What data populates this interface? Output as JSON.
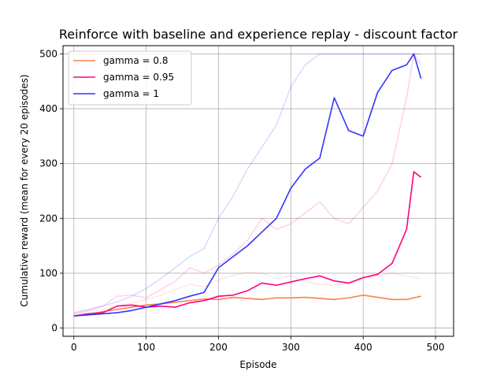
{
  "chart_data": {
    "type": "line",
    "title": "Reinforce with baseline and experience replay - discount factor",
    "xlabel": "Episode",
    "ylabel": "Cumulative reward (mean for every 20 episodes)",
    "xlim": [
      -15,
      525
    ],
    "ylim": [
      -15,
      515
    ],
    "xticks": [
      0,
      100,
      200,
      300,
      400,
      500
    ],
    "yticks": [
      0,
      100,
      200,
      300,
      400,
      500
    ],
    "grid": true,
    "legend": "upper left",
    "series": [
      {
        "name": "gamma = 0.8",
        "color": "#ff7f50",
        "x": [
          0,
          20,
          40,
          60,
          80,
          100,
          120,
          140,
          160,
          180,
          200,
          220,
          240,
          260,
          280,
          300,
          320,
          340,
          360,
          380,
          400,
          420,
          440,
          460,
          480
        ],
        "y": [
          22,
          25,
          30,
          34,
          38,
          42,
          44,
          47,
          50,
          53,
          52,
          56,
          54,
          52,
          55,
          55,
          56,
          54,
          52,
          55,
          60,
          56,
          52,
          52,
          58
        ],
        "raw_y": [
          24,
          30,
          34,
          40,
          46,
          52,
          60,
          70,
          80,
          75,
          88,
          96,
          102,
          100,
          90,
          95,
          85,
          80,
          78,
          82,
          90,
          95,
          100,
          95,
          90
        ]
      },
      {
        "name": "gamma = 0.95",
        "color": "#ff0080",
        "x": [
          0,
          20,
          40,
          60,
          80,
          100,
          120,
          140,
          160,
          180,
          200,
          220,
          240,
          260,
          280,
          300,
          320,
          340,
          360,
          380,
          400,
          420,
          440,
          460,
          470,
          480
        ],
        "y": [
          22,
          26,
          28,
          40,
          42,
          38,
          40,
          38,
          46,
          50,
          58,
          60,
          68,
          82,
          78,
          84,
          90,
          95,
          86,
          82,
          92,
          98,
          118,
          180,
          285,
          275
        ],
        "raw_y": [
          26,
          32,
          40,
          58,
          60,
          55,
          70,
          85,
          110,
          100,
          115,
          135,
          160,
          200,
          180,
          190,
          210,
          230,
          200,
          190,
          220,
          250,
          300,
          420,
          500,
          480
        ]
      },
      {
        "name": "gamma = 1",
        "color": "#3333ff",
        "x": [
          0,
          20,
          40,
          60,
          80,
          100,
          120,
          140,
          160,
          180,
          200,
          220,
          240,
          260,
          280,
          300,
          320,
          340,
          360,
          380,
          400,
          420,
          440,
          460,
          470,
          480
        ],
        "y": [
          22,
          24,
          26,
          28,
          32,
          38,
          44,
          50,
          58,
          65,
          110,
          130,
          150,
          175,
          200,
          255,
          290,
          310,
          420,
          360,
          350,
          430,
          470,
          480,
          500,
          455
        ],
        "raw_y": [
          28,
          34,
          40,
          48,
          58,
          72,
          90,
          110,
          130,
          145,
          200,
          240,
          290,
          330,
          370,
          440,
          480,
          500,
          500,
          500,
          500,
          500,
          500,
          500,
          500,
          500
        ]
      }
    ]
  }
}
